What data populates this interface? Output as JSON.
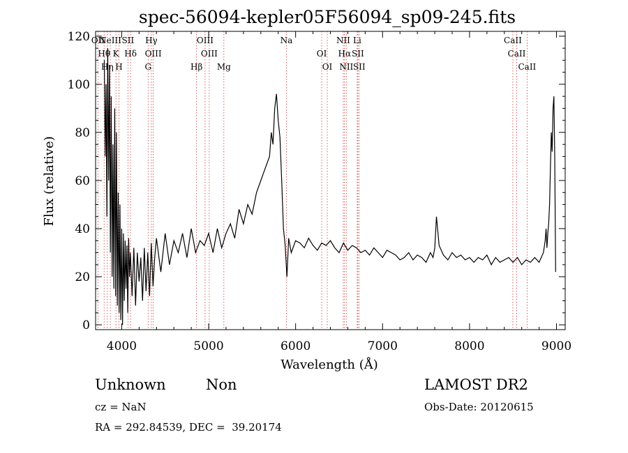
{
  "chart_data": {
    "type": "line",
    "title": "spec-56094-kepler05F56094_sp09-245.fits",
    "xlabel": "Wavelength (Å)",
    "ylabel": "Flux (relative)",
    "xlim": [
      3700,
      9100
    ],
    "ylim": [
      -2,
      122
    ],
    "xticks": [
      4000,
      5000,
      6000,
      7000,
      8000,
      9000
    ],
    "yticks": [
      0,
      20,
      40,
      60,
      80,
      100,
      120
    ],
    "grid": false,
    "series": [
      {
        "x": [
          3800,
          3810,
          3820,
          3830,
          3840,
          3850,
          3860,
          3870,
          3880,
          3890,
          3900,
          3910,
          3920,
          3930,
          3940,
          3950,
          3960,
          3970,
          3980,
          3990,
          4000,
          4010,
          4020,
          4030,
          4040,
          4050,
          4060,
          4070,
          4080,
          4090,
          4100,
          4120,
          4140,
          4160,
          4180,
          4200,
          4220,
          4240,
          4260,
          4280,
          4300,
          4320,
          4340,
          4360,
          4380,
          4400,
          4450,
          4500,
          4550,
          4600,
          4650,
          4700,
          4750,
          4800,
          4850,
          4900,
          4950,
          5000,
          5050,
          5100,
          5150,
          5200,
          5250,
          5300,
          5350,
          5400,
          5450,
          5500,
          5550,
          5600,
          5650,
          5700,
          5720,
          5740,
          5760,
          5780,
          5800,
          5820,
          5840,
          5860,
          5880,
          5900,
          5920,
          5950,
          6000,
          6050,
          6100,
          6150,
          6200,
          6250,
          6300,
          6350,
          6400,
          6450,
          6500,
          6550,
          6600,
          6650,
          6700,
          6750,
          6800,
          6850,
          6900,
          6950,
          7000,
          7050,
          7100,
          7150,
          7200,
          7250,
          7300,
          7350,
          7400,
          7450,
          7500,
          7550,
          7580,
          7600,
          7620,
          7650,
          7700,
          7750,
          7800,
          7850,
          7900,
          7950,
          8000,
          8050,
          8100,
          8150,
          8200,
          8250,
          8300,
          8350,
          8400,
          8450,
          8500,
          8550,
          8600,
          8650,
          8700,
          8750,
          8800,
          8850,
          8870,
          8880,
          8890,
          8900,
          8910,
          8920,
          8930,
          8940,
          8950,
          8960,
          8970,
          8980,
          8990
        ],
        "y": [
          110,
          70,
          100,
          45,
          115,
          60,
          108,
          30,
          95,
          20,
          75,
          15,
          90,
          12,
          80,
          8,
          55,
          5,
          50,
          2,
          40,
          0,
          38,
          10,
          35,
          15,
          33,
          5,
          36,
          20,
          30,
          12,
          32,
          8,
          30,
          18,
          28,
          10,
          32,
          14,
          30,
          12,
          34,
          16,
          28,
          36,
          22,
          38,
          25,
          35,
          30,
          38,
          28,
          40,
          30,
          35,
          33,
          38,
          30,
          40,
          32,
          38,
          42,
          36,
          48,
          42,
          50,
          46,
          55,
          60,
          65,
          70,
          80,
          75,
          90,
          96,
          85,
          78,
          60,
          40,
          33,
          20,
          36,
          30,
          35,
          34,
          32,
          36,
          33,
          31,
          34,
          33,
          35,
          32,
          30,
          34,
          31,
          33,
          32,
          30,
          31,
          29,
          32,
          30,
          28,
          31,
          30,
          29,
          27,
          28,
          30,
          27,
          29,
          28,
          26,
          30,
          28,
          32,
          45,
          33,
          29,
          27,
          30,
          28,
          29,
          27,
          28,
          26,
          28,
          27,
          29,
          25,
          28,
          26,
          27,
          28,
          26,
          28,
          25,
          27,
          26,
          28,
          26,
          30,
          35,
          40,
          32,
          38,
          42,
          50,
          65,
          80,
          72,
          90,
          95,
          70,
          22
        ]
      }
    ],
    "line_markers": [
      {
        "x": 3727,
        "label": "OII"
      },
      {
        "x": 3798,
        "label": "Hθ"
      },
      {
        "x": 3835,
        "label": "Hη"
      },
      {
        "x": 3869,
        "label": "NeIII"
      },
      {
        "x": 3934,
        "label": "K"
      },
      {
        "x": 3969,
        "label": "H"
      },
      {
        "x": 4072,
        "label": "SII"
      },
      {
        "x": 4102,
        "label": "Hδ"
      },
      {
        "x": 4304,
        "label": "G"
      },
      {
        "x": 4341,
        "label": "Hγ"
      },
      {
        "x": 4363,
        "label": "OIII"
      },
      {
        "x": 4861,
        "label": "Hβ"
      },
      {
        "x": 4959,
        "label": "OIII"
      },
      {
        "x": 5007,
        "label": "OIII"
      },
      {
        "x": 5175,
        "label": "Mg"
      },
      {
        "x": 5894,
        "label": "Na"
      },
      {
        "x": 6300,
        "label": "OI"
      },
      {
        "x": 6364,
        "label": "OI"
      },
      {
        "x": 6548,
        "label": "NII"
      },
      {
        "x": 6563,
        "label": "Hα"
      },
      {
        "x": 6583,
        "label": "NII"
      },
      {
        "x": 6708,
        "label": "Li"
      },
      {
        "x": 6716,
        "label": "SII"
      },
      {
        "x": 6731,
        "label": "SII"
      },
      {
        "x": 8498,
        "label": "CaII"
      },
      {
        "x": 8542,
        "label": "CaII"
      },
      {
        "x": 8662,
        "label": "CaII"
      }
    ]
  },
  "info": {
    "class_label": "Unknown",
    "subclass_label": "Non",
    "survey": "LAMOST DR2",
    "cz": "cz = NaN",
    "obs_date": "Obs-Date: 20120615",
    "coords": "RA = 292.84539, DEC =  39.20174"
  },
  "colors": {
    "spectrum": "#000000",
    "marker_line": "#cc3333",
    "axis": "#000000"
  }
}
